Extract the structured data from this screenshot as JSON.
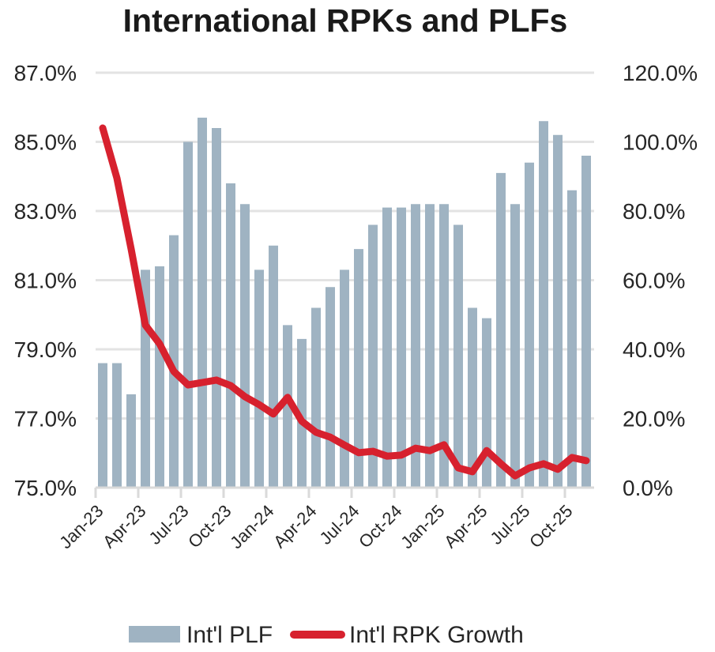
{
  "chart_data": {
    "type": "bar+line",
    "title": "International RPKs and PLFs",
    "xlabel": "",
    "ylabel_left": "",
    "ylabel_right": "",
    "categories": [
      "Jan-23",
      "Feb-23",
      "Mar-23",
      "Apr-23",
      "May-23",
      "Jun-23",
      "Jul-23",
      "Aug-23",
      "Sep-23",
      "Oct-23",
      "Nov-23",
      "Dec-23",
      "Jan-24",
      "Feb-24",
      "Mar-24",
      "Apr-24",
      "May-24",
      "Jun-24",
      "Jul-24",
      "Aug-24",
      "Sep-24",
      "Oct-24",
      "Nov-24",
      "Dec-24",
      "Jan-25",
      "Feb-25",
      "Mar-25",
      "Apr-25",
      "May-25",
      "Jun-25",
      "Jul-25",
      "Aug-25",
      "Sep-25",
      "Oct-25",
      "Nov-25"
    ],
    "x_tick_labels": [
      "Jan-23",
      "Apr-23",
      "Jul-23",
      "Oct-23",
      "Jan-24",
      "Apr-24",
      "Jul-24",
      "Oct-24",
      "Jan-25",
      "Apr-25",
      "Jul-25",
      "Oct-25"
    ],
    "series": [
      {
        "name": "Int'l PLF",
        "type": "bar",
        "axis": "left",
        "color": "#9fb3c2",
        "values": [
          78.6,
          78.6,
          77.7,
          81.3,
          81.4,
          82.3,
          85.0,
          85.7,
          85.4,
          83.8,
          83.2,
          81.3,
          82.0,
          79.7,
          79.3,
          80.2,
          80.8,
          81.3,
          81.9,
          82.6,
          83.1,
          83.1,
          83.2,
          83.2,
          83.2,
          82.6,
          80.2,
          79.9,
          84.1,
          83.2,
          84.4,
          85.6,
          85.2,
          83.6,
          84.6
        ]
      },
      {
        "name": "Int'l RPK Growth",
        "type": "line",
        "axis": "right",
        "color": "#d7212e",
        "values": [
          104.0,
          89.5,
          69.0,
          47.0,
          41.6,
          33.6,
          29.7,
          30.4,
          31.1,
          29.5,
          26.3,
          24.0,
          21.3,
          26.1,
          19.2,
          16.0,
          14.6,
          12.3,
          10.1,
          10.5,
          9.1,
          9.4,
          11.4,
          10.7,
          12.4,
          5.7,
          4.6,
          10.7,
          6.9,
          3.4,
          5.7,
          6.9,
          5.3,
          8.7,
          7.8
        ]
      }
    ],
    "y_left": {
      "min": 75,
      "max": 87,
      "ticks": [
        75,
        77,
        79,
        81,
        83,
        85,
        87
      ],
      "tick_labels": [
        "75.0%",
        "77.0%",
        "79.0%",
        "81.0%",
        "83.0%",
        "85.0%",
        "87.0%"
      ]
    },
    "y_right": {
      "min": 0,
      "max": 120,
      "ticks": [
        0,
        20,
        40,
        60,
        80,
        100,
        120
      ],
      "tick_labels": [
        "0.0%",
        "20.0%",
        "40.0%",
        "60.0%",
        "80.0%",
        "100.0%",
        "120.0%"
      ]
    },
    "grid": true,
    "legend": {
      "placement": "bottom",
      "entries": [
        "Int'l PLF",
        "Int'l RPK Growth"
      ]
    }
  }
}
